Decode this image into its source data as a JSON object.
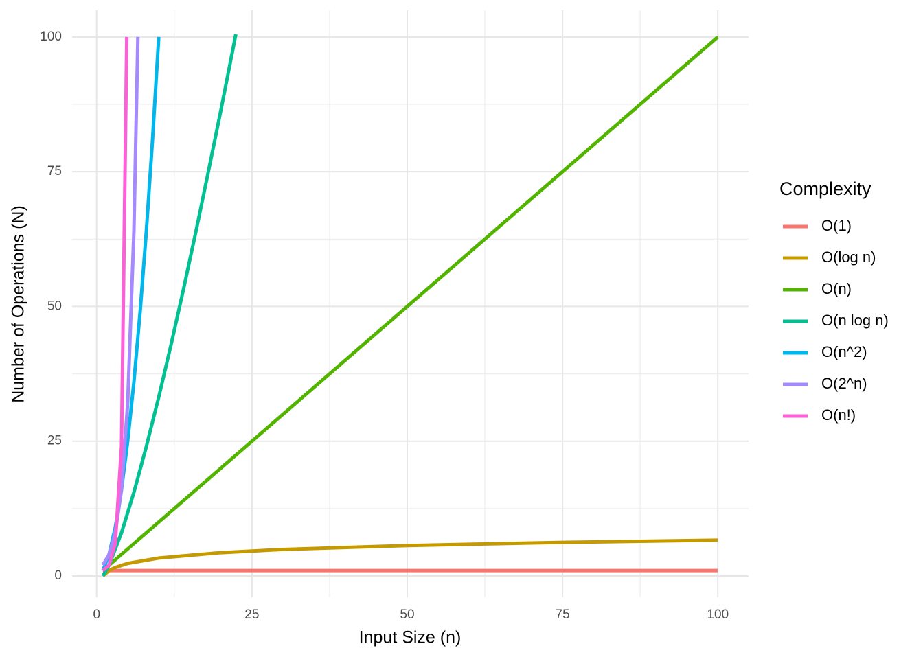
{
  "chart_data": {
    "type": "line",
    "x_label": "Input Size (n)",
    "y_label": "Number of Operations (N)",
    "legend_title": "Complexity",
    "legend": "right",
    "grid": true,
    "xlim": [
      -3.95,
      104.95
    ],
    "ylim": [
      -3.95,
      104.95
    ],
    "xticks": [
      0,
      25,
      50,
      75,
      100
    ],
    "yticks": [
      0,
      25,
      50,
      75,
      100
    ],
    "x_minor_ticks": [
      12.5,
      37.5,
      62.5,
      87.5
    ],
    "y_minor_ticks": [
      12.5,
      37.5,
      62.5,
      87.5
    ],
    "series": [
      {
        "name": "O(1)",
        "color": "#F8766D",
        "x": [
          1,
          100
        ],
        "values": [
          1,
          1
        ]
      },
      {
        "name": "O(log n)",
        "color": "#C49A00",
        "x": [
          1,
          2,
          3,
          5,
          10,
          20,
          30,
          50,
          75,
          100
        ],
        "values": [
          0,
          1,
          1.58,
          2.32,
          3.32,
          4.32,
          4.91,
          5.64,
          6.23,
          6.64
        ]
      },
      {
        "name": "O(n)",
        "color": "#53B400",
        "x": [
          1,
          100
        ],
        "values": [
          1,
          100
        ]
      },
      {
        "name": "O(n log n)",
        "color": "#00C094",
        "x": [
          1,
          2,
          4,
          6,
          8,
          10,
          12,
          14,
          16,
          18,
          20,
          22,
          22.4
        ],
        "values": [
          0,
          2,
          8,
          15.5,
          24,
          33.2,
          43,
          53.3,
          64,
          75.1,
          86.4,
          98.1,
          100.5
        ]
      },
      {
        "name": "O(n^2)",
        "color": "#00B6EB",
        "x": [
          1,
          2,
          3,
          4,
          5,
          6,
          7,
          8,
          9,
          10
        ],
        "values": [
          1,
          4,
          9,
          16,
          25,
          36,
          49,
          64,
          81,
          100
        ]
      },
      {
        "name": "O(2^n)",
        "color": "#A58AFF",
        "x": [
          1,
          2,
          3,
          4,
          5,
          6,
          6.64
        ],
        "values": [
          2,
          4,
          8,
          16,
          32,
          64,
          100
        ]
      },
      {
        "name": "O(n!)",
        "color": "#FB61D7",
        "x": [
          1,
          2,
          3,
          4,
          4.85
        ],
        "values": [
          1,
          2,
          6,
          24,
          100
        ]
      }
    ]
  }
}
